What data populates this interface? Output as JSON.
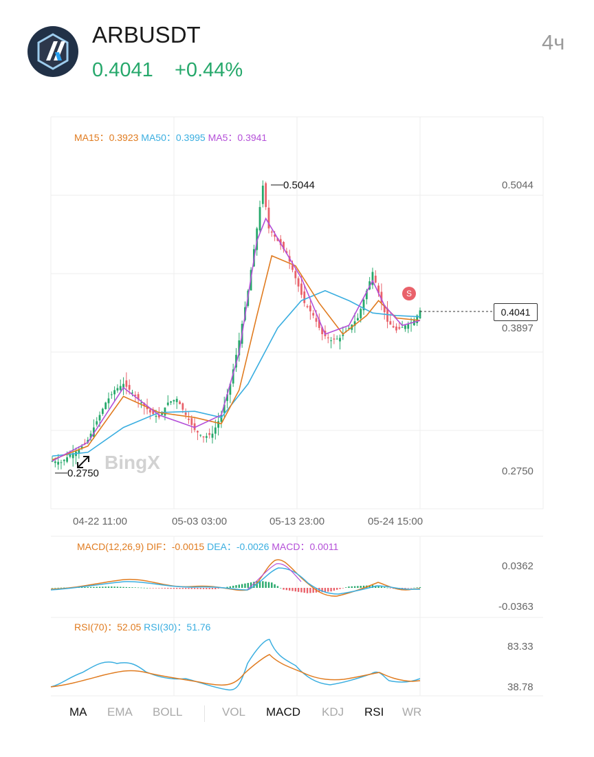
{
  "header": {
    "symbol": "ARBUSDT",
    "price": "0.4041",
    "change": "+0.44%",
    "interval": "4ч"
  },
  "colors": {
    "up": "#26a86b",
    "down": "#e9616a",
    "ma15": "#e07b1f",
    "ma50": "#3aaee0",
    "ma5": "#b44fd8"
  },
  "legends": {
    "ma15_label": "MA15：",
    "ma15_value": "0.3923",
    "ma50_label": "MA50：",
    "ma50_value": "0.3995",
    "ma5_label": "MA5：",
    "ma5_value": "0.3941",
    "macd_label": "MACD(12,26,9)",
    "dif_label": "DIF：",
    "dif_value": "-0.0015",
    "dea_label": "DEA：",
    "dea_value": "-0.0026",
    "macd_val_label": "MACD：",
    "macd_value": "0.0011",
    "rsi70_label": "RSI(70)：",
    "rsi70_value": "52.05",
    "rsi30_label": "RSI(30)：",
    "rsi30_value": "51.76"
  },
  "price_axis": {
    "high": "0.5044",
    "current": "0.4041",
    "prev": "0.3897",
    "low": "0.2750"
  },
  "chart_markers": {
    "high_label": "0.5044",
    "low_label": "0.2750",
    "signal_badge": "S",
    "watermark": "BingX"
  },
  "time_axis": [
    "04-22 11:00",
    "05-03 03:00",
    "05-13 23:00",
    "05-24 15:00"
  ],
  "macd_axis": {
    "top": "0.0362",
    "bottom": "-0.0363"
  },
  "rsi_axis": {
    "top": "83.33",
    "bottom": "38.78"
  },
  "tabs": {
    "ma": "MA",
    "ema": "EMA",
    "boll": "BOLL",
    "vol": "VOL",
    "macd": "MACD",
    "kdj": "KDJ",
    "rsi": "RSI",
    "wr": "WR"
  },
  "chart_data": {
    "type": "line",
    "title": "ARBUSDT",
    "y_range": [
      0.275,
      0.5044
    ],
    "x_ticks": [
      "04-22 11:00",
      "05-03 03:00",
      "05-13 23:00",
      "05-24 15:00"
    ],
    "close_path": [
      [
        0,
        0.283
      ],
      [
        3,
        0.282
      ],
      [
        6,
        0.288
      ],
      [
        9,
        0.292
      ],
      [
        12,
        0.3
      ],
      [
        15,
        0.315
      ],
      [
        18,
        0.33
      ],
      [
        21,
        0.34
      ],
      [
        24,
        0.345
      ],
      [
        27,
        0.338
      ],
      [
        30,
        0.33
      ],
      [
        33,
        0.322
      ],
      [
        36,
        0.318
      ],
      [
        39,
        0.33
      ],
      [
        42,
        0.333
      ],
      [
        45,
        0.32
      ],
      [
        48,
        0.308
      ],
      [
        51,
        0.302
      ],
      [
        54,
        0.305
      ],
      [
        57,
        0.32
      ],
      [
        60,
        0.345
      ],
      [
        63,
        0.38
      ],
      [
        66,
        0.42
      ],
      [
        69,
        0.47
      ],
      [
        71,
        0.5044
      ],
      [
        73,
        0.47
      ],
      [
        76,
        0.46
      ],
      [
        79,
        0.45
      ],
      [
        82,
        0.43
      ],
      [
        85,
        0.41
      ],
      [
        88,
        0.4
      ],
      [
        91,
        0.385
      ],
      [
        94,
        0.38
      ],
      [
        97,
        0.382
      ],
      [
        100,
        0.39
      ],
      [
        103,
        0.398
      ],
      [
        106,
        0.42
      ],
      [
        108,
        0.435
      ],
      [
        110,
        0.418
      ],
      [
        113,
        0.395
      ],
      [
        116,
        0.388
      ],
      [
        119,
        0.392
      ],
      [
        122,
        0.396
      ],
      [
        124,
        0.4041
      ]
    ],
    "series": [
      {
        "name": "MA15",
        "values": [
          [
            0,
            0.284
          ],
          [
            12,
            0.295
          ],
          [
            24,
            0.335
          ],
          [
            36,
            0.322
          ],
          [
            48,
            0.318
          ],
          [
            57,
            0.313
          ],
          [
            63,
            0.34
          ],
          [
            69,
            0.4
          ],
          [
            74,
            0.448
          ],
          [
            82,
            0.44
          ],
          [
            90,
            0.41
          ],
          [
            98,
            0.385
          ],
          [
            106,
            0.4
          ],
          [
            110,
            0.412
          ],
          [
            116,
            0.398
          ],
          [
            124,
            0.396
          ]
        ]
      },
      {
        "name": "MA50",
        "values": [
          [
            0,
            0.287
          ],
          [
            12,
            0.29
          ],
          [
            24,
            0.31
          ],
          [
            36,
            0.322
          ],
          [
            48,
            0.323
          ],
          [
            57,
            0.318
          ],
          [
            66,
            0.345
          ],
          [
            76,
            0.39
          ],
          [
            84,
            0.412
          ],
          [
            92,
            0.42
          ],
          [
            100,
            0.412
          ],
          [
            108,
            0.402
          ],
          [
            116,
            0.4
          ],
          [
            124,
            0.399
          ]
        ]
      },
      {
        "name": "MA5",
        "values": [
          [
            0,
            0.283
          ],
          [
            12,
            0.298
          ],
          [
            24,
            0.342
          ],
          [
            36,
            0.32
          ],
          [
            48,
            0.31
          ],
          [
            57,
            0.32
          ],
          [
            63,
            0.37
          ],
          [
            69,
            0.46
          ],
          [
            72,
            0.478
          ],
          [
            76,
            0.462
          ],
          [
            84,
            0.43
          ],
          [
            92,
            0.385
          ],
          [
            100,
            0.392
          ],
          [
            108,
            0.428
          ],
          [
            112,
            0.408
          ],
          [
            118,
            0.392
          ],
          [
            124,
            0.396
          ]
        ]
      }
    ]
  }
}
